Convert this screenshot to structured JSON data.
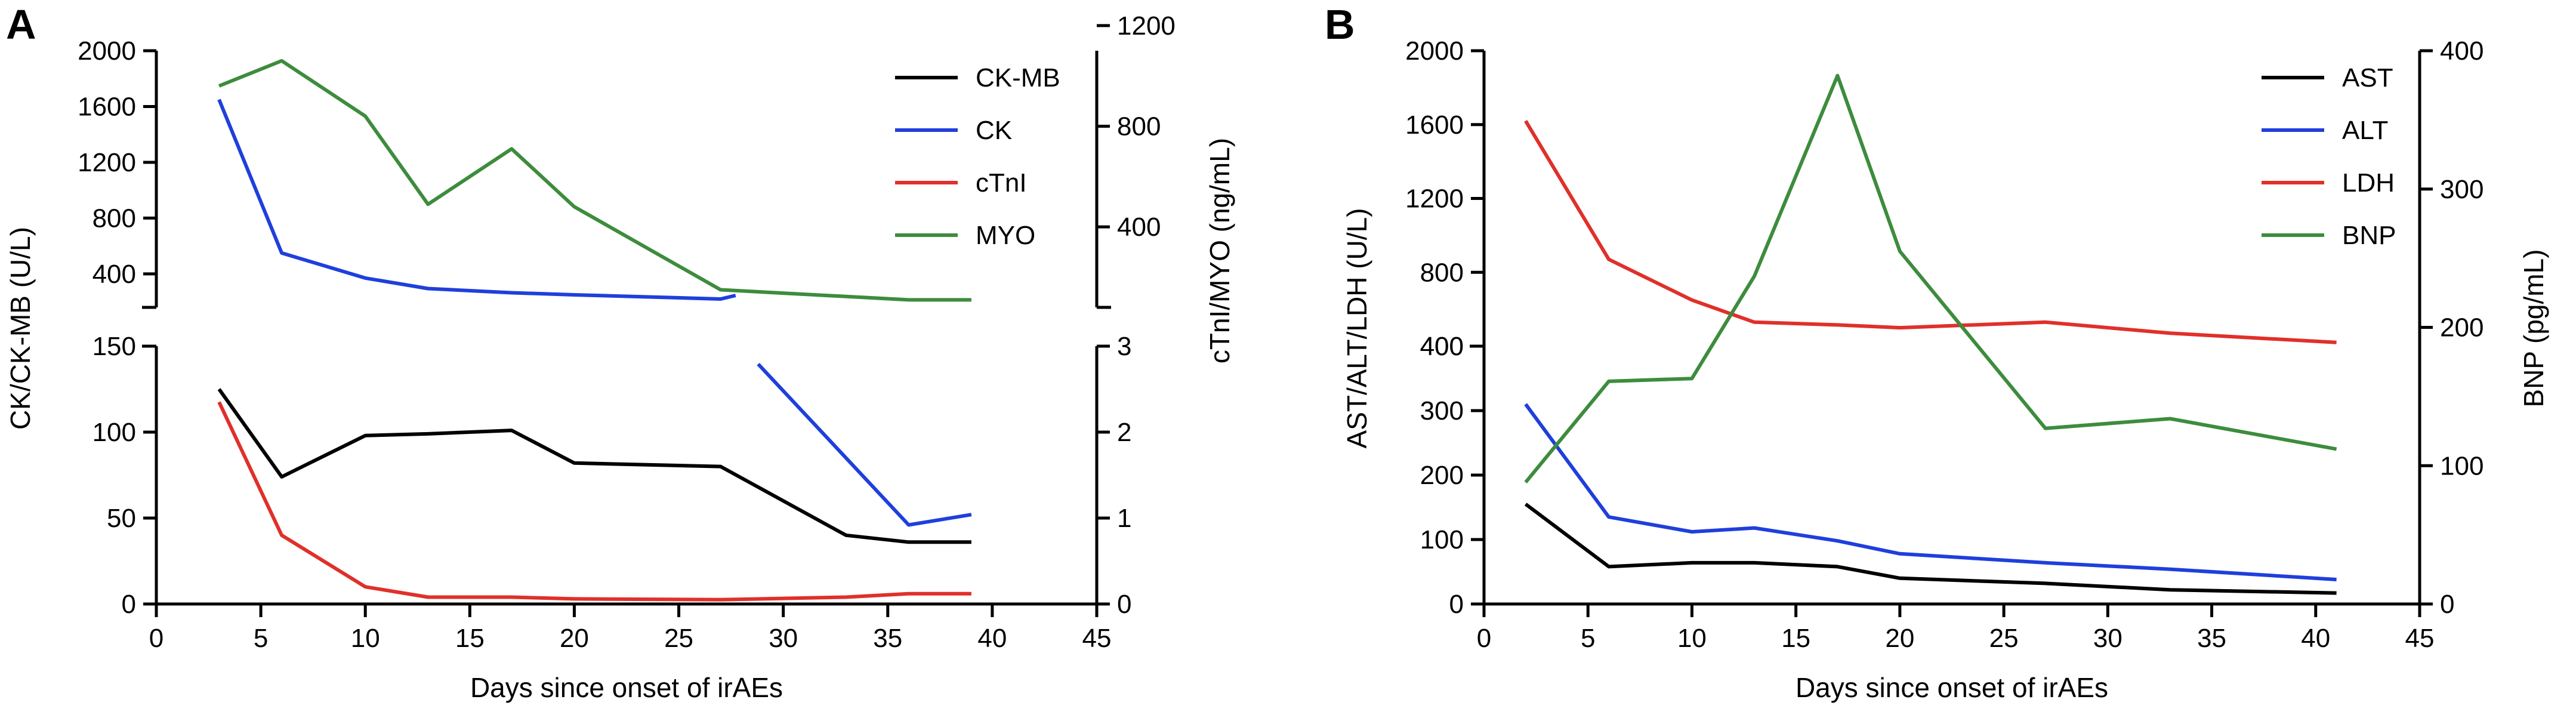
{
  "chart_data": [
    {
      "panel_label": "A",
      "type": "line",
      "xlabel": "Days since onset of irAEs",
      "ylabel_left": "CK/CK-MB (U/L)",
      "ylabel_right": "cTnI/MYO (ng/mL)",
      "xlim": [
        0,
        45
      ],
      "xticks": [
        0,
        5,
        10,
        15,
        20,
        25,
        30,
        35,
        40,
        45
      ],
      "left_axis_broken": true,
      "left_lower_ylim": [
        0,
        150
      ],
      "left_lower_ticks": [
        0,
        50,
        100,
        150
      ],
      "left_upper_ylim": [
        160,
        2000
      ],
      "left_upper_ticks": [
        400,
        800,
        1200,
        1600,
        2000
      ],
      "right_lower_ylim": [
        0,
        3
      ],
      "right_lower_ticks": [
        0,
        1,
        2,
        3
      ],
      "right_upper_ylim": [
        80,
        1100
      ],
      "right_upper_ticks": [
        400,
        800,
        1200
      ],
      "legend": [
        "CK-MB",
        "CK",
        "cTnI",
        "MYO"
      ],
      "series": [
        {
          "name": "CK-MB",
          "color": "#000000",
          "axis": "left",
          "x": [
            3,
            6,
            10,
            13,
            17,
            20,
            27,
            33,
            36,
            39
          ],
          "y": [
            125,
            74,
            98,
            99,
            101,
            82,
            80,
            40,
            36,
            36
          ]
        },
        {
          "name": "CK",
          "color": "#1f3fdc",
          "axis": "left",
          "x": [
            3,
            6,
            10,
            13,
            17,
            20,
            27,
            36,
            39
          ],
          "y": [
            1650,
            550,
            370,
            295,
            265,
            250,
            220,
            46,
            52
          ]
        },
        {
          "name": "cTnI",
          "color": "#e0302a",
          "axis": "right_lower",
          "x": [
            3,
            6,
            10,
            13,
            17,
            20,
            27,
            33,
            36,
            39
          ],
          "y": [
            2.35,
            0.8,
            0.2,
            0.08,
            0.08,
            0.06,
            0.05,
            0.08,
            0.12,
            0.12
          ]
        },
        {
          "name": "MYO",
          "color": "#3d8c3d",
          "axis": "right_upper",
          "x": [
            3,
            6,
            10,
            13,
            17,
            20,
            27,
            36,
            39
          ],
          "y": [
            960,
            1060,
            840,
            490,
            710,
            480,
            150,
            110,
            110
          ]
        }
      ]
    },
    {
      "panel_label": "B",
      "type": "line",
      "xlabel": "Days since onset of irAEs",
      "ylabel_left": "AST/ALT/LDH (U/L)",
      "ylabel_right": "BNP (pg/mL)",
      "xlim": [
        0,
        45
      ],
      "xticks": [
        0,
        5,
        10,
        15,
        20,
        25,
        30,
        35,
        40,
        45
      ],
      "left_axis_broken": true,
      "left_lower_ylim": [
        0,
        400
      ],
      "left_lower_ticks": [
        0,
        100,
        200,
        300,
        400
      ],
      "left_upper_ylim": [
        400,
        2000
      ],
      "left_upper_ticks": [
        400,
        800,
        1200,
        1600,
        2000
      ],
      "right_ylim": [
        0,
        400
      ],
      "right_ticks": [
        0,
        100,
        200,
        300,
        400
      ],
      "legend": [
        "AST",
        "ALT",
        "LDH",
        "BNP"
      ],
      "series": [
        {
          "name": "AST",
          "color": "#000000",
          "axis": "left",
          "x": [
            2,
            6,
            10,
            13,
            17,
            20,
            27,
            33,
            41
          ],
          "y": [
            155,
            58,
            64,
            64,
            58,
            40,
            32,
            22,
            17
          ]
        },
        {
          "name": "ALT",
          "color": "#1f3fdc",
          "axis": "left",
          "x": [
            2,
            6,
            10,
            13,
            17,
            20,
            27,
            33,
            41
          ],
          "y": [
            310,
            135,
            112,
            118,
            98,
            78,
            64,
            54,
            38
          ]
        },
        {
          "name": "LDH",
          "color": "#e0302a",
          "axis": "left",
          "x": [
            2,
            6,
            10,
            13,
            17,
            20,
            27,
            33,
            41
          ],
          "y": [
            1620,
            870,
            650,
            530,
            515,
            500,
            530,
            470,
            420
          ]
        },
        {
          "name": "BNP",
          "color": "#3d8c3d",
          "axis": "right",
          "x": [
            2,
            6,
            10,
            13,
            17,
            20,
            27,
            33,
            41
          ],
          "y": [
            88,
            161,
            163,
            237,
            382,
            255,
            127,
            134,
            112
          ]
        }
      ]
    }
  ]
}
